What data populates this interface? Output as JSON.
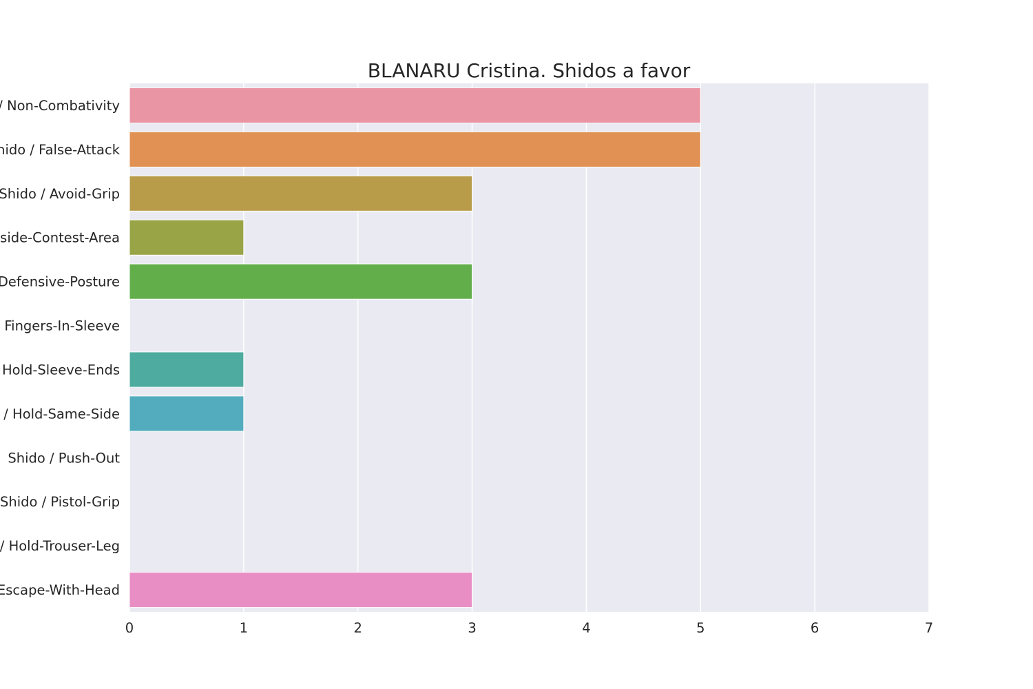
{
  "chart_data": {
    "type": "bar",
    "orientation": "horizontal",
    "title": "BLANARU Cristina. Shidos a favor",
    "xlabel": "",
    "ylabel": "",
    "categories": [
      "Shido / Non-Combativity",
      "Shido / False-Attack",
      "Shido / Avoid-Grip",
      "Shido / Outside-Contest-Area",
      "Shido / Defensive-Posture",
      "Shido / Fingers-In-Sleeve",
      "Shido / Hold-Sleeve-Ends",
      "Shido / Hold-Same-Side",
      "Shido / Push-Out",
      "Shido / Pistol-Grip",
      "Shido / Hold-Trouser-Leg",
      "Shido / Escape-With-Head"
    ],
    "values": [
      5,
      5,
      3,
      1,
      3,
      0,
      1,
      1,
      0,
      0,
      0,
      3
    ],
    "colors": [
      "#e995a3",
      "#e09153",
      "#b89c4a",
      "#98a446",
      "#62ae4a",
      "#52ae8a",
      "#4dab9f",
      "#52acbd",
      "#62a9e0",
      "#a8a4ee",
      "#df8fe7",
      "#e98ec5"
    ],
    "xlim": [
      0,
      7
    ],
    "xticks": [
      0,
      1,
      2,
      3,
      4,
      5,
      6,
      7
    ],
    "grid": true,
    "background_color": "#eaeaf2",
    "legend": "none"
  }
}
